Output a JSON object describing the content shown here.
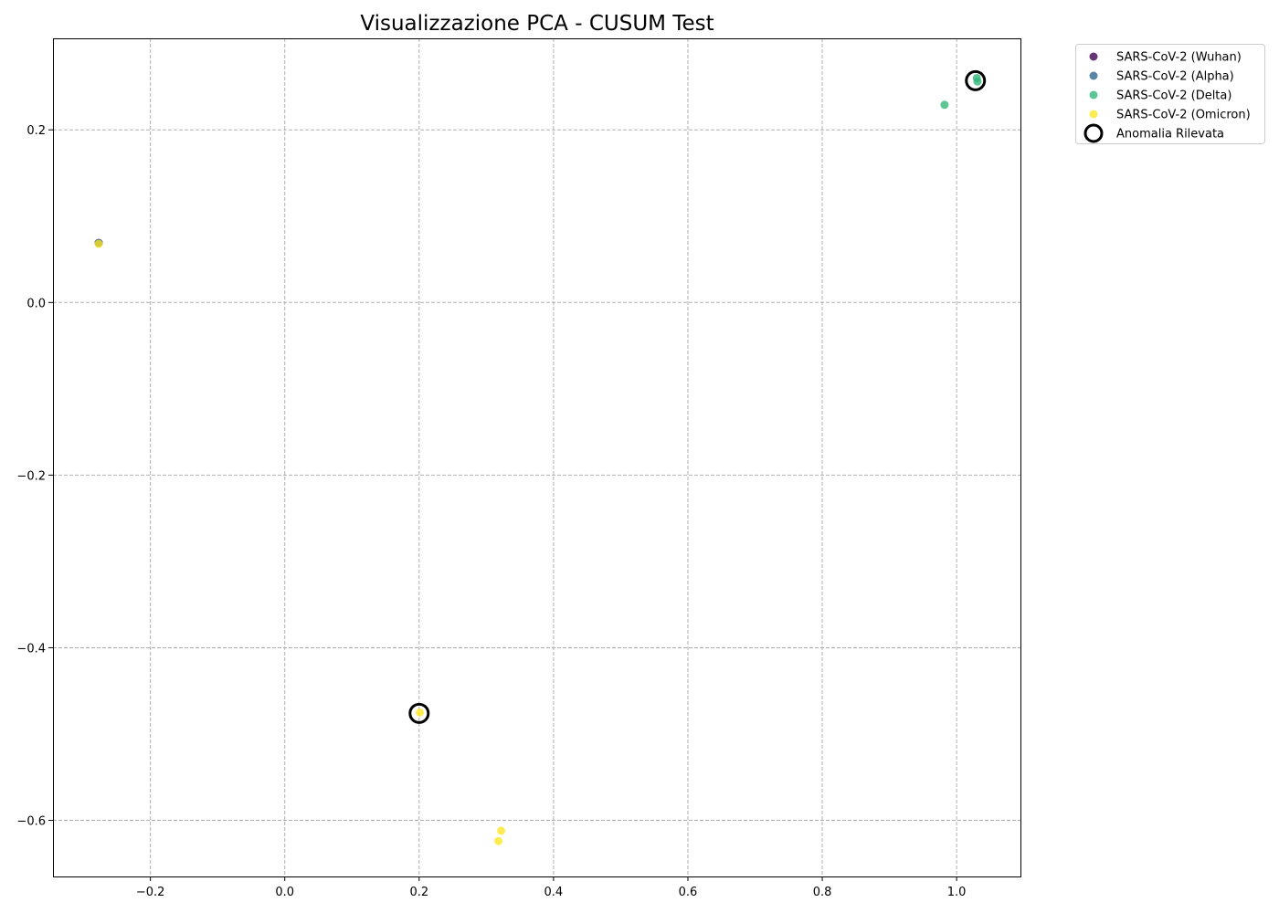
{
  "chart_data": {
    "type": "scatter",
    "title": "Visualizzazione PCA - CUSUM Test",
    "xlabel": "",
    "ylabel": "",
    "xlim": [
      -0.345,
      1.095
    ],
    "ylim": [
      -0.665,
      0.306
    ],
    "x_ticks": [
      -0.2,
      0.0,
      0.2,
      0.4,
      0.6,
      0.8,
      1.0
    ],
    "x_tick_labels": [
      "−0.2",
      "0.0",
      "0.2",
      "0.4",
      "0.6",
      "0.8",
      "1.0"
    ],
    "y_ticks": [
      -0.6,
      -0.4,
      -0.2,
      0.0,
      0.2
    ],
    "y_tick_labels": [
      "−0.6",
      "−0.4",
      "−0.2",
      "0.0",
      "0.2"
    ],
    "grid": true,
    "legend_position": "outside top-right",
    "series": [
      {
        "name": "SARS-CoV-2 (Wuhan)",
        "color": "#440154",
        "points": [
          [
            -0.277,
            0.069
          ]
        ]
      },
      {
        "name": "SARS-CoV-2 (Alpha)",
        "color": "#31688e",
        "points": [
          [
            -0.277,
            0.069
          ]
        ]
      },
      {
        "name": "SARS-CoV-2 (Delta)",
        "color": "#35b779",
        "points": [
          [
            0.982,
            0.229
          ],
          [
            1.03,
            0.26
          ],
          [
            1.031,
            0.256
          ]
        ]
      },
      {
        "name": "SARS-CoV-2 (Omicron)",
        "color": "#fde725",
        "points": [
          [
            -0.277,
            0.068
          ],
          [
            0.201,
            -0.475
          ],
          [
            0.322,
            -0.612
          ],
          [
            0.318,
            -0.624
          ]
        ]
      }
    ],
    "anomalies": {
      "name": "Anomalia Rilevata",
      "color": "#000000",
      "points": [
        [
          1.028,
          0.257
        ],
        [
          0.2,
          -0.476
        ]
      ]
    }
  }
}
